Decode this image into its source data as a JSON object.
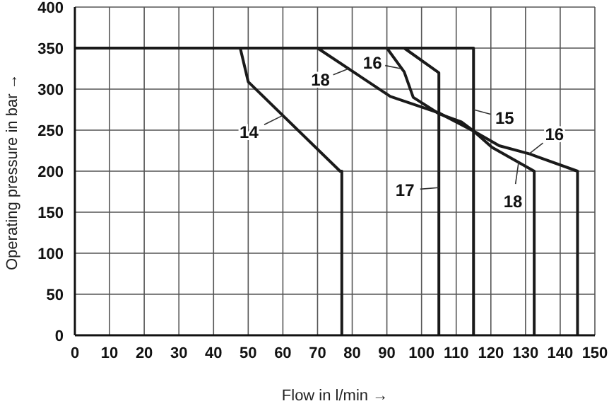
{
  "chart_data": {
    "type": "line",
    "xlabel": "Flow in l/min →",
    "ylabel": "Operating pressure in bar →",
    "xlim": [
      0,
      150
    ],
    "ylim": [
      0,
      400
    ],
    "xticks": [
      0,
      10,
      20,
      30,
      40,
      50,
      60,
      70,
      80,
      90,
      100,
      110,
      120,
      130,
      140,
      150
    ],
    "yticks": [
      0,
      50,
      100,
      150,
      200,
      250,
      300,
      350,
      400
    ],
    "grid": true,
    "marker": "none",
    "line_style": "solid",
    "series": [
      {
        "color": "#1a1a1a",
        "x": [
          0,
          47.7,
          50,
          76.5,
          77,
          77
        ],
        "values": [
          350,
          350,
          309,
          200,
          200,
          0
        ]
      },
      {
        "color": "#1a1a1a",
        "x": [
          0,
          115,
          115
        ],
        "values": [
          350,
          350,
          0
        ]
      },
      {
        "color": "#1a1a1a",
        "x": [
          0,
          90,
          95,
          97.6,
          105,
          111.5,
          115,
          122.4,
          131.2,
          145,
          145
        ],
        "values": [
          350,
          350,
          321,
          290,
          270,
          260,
          249,
          231,
          221,
          200,
          0
        ]
      },
      {
        "color": "#1a1a1a",
        "x": [
          0,
          95,
          105,
          105
        ],
        "values": [
          350,
          350,
          320,
          0
        ]
      },
      {
        "color": "#1a1a1a",
        "x": [
          0,
          70,
          91,
          105,
          115,
          120.3,
          132.5,
          132.5
        ],
        "values": [
          350,
          350,
          291,
          271,
          249,
          229,
          200,
          0
        ]
      }
    ],
    "annotations": [
      {
        "text": "14",
        "x": 60,
        "y": 268
      },
      {
        "text": "18",
        "x": 79,
        "y": 325
      },
      {
        "text": "16",
        "x": 94,
        "y": 325
      },
      {
        "text": "15",
        "x": 115,
        "y": 275
      },
      {
        "text": "16",
        "x": 131,
        "y": 221
      },
      {
        "text": "18",
        "x": 128,
        "y": 211
      },
      {
        "text": "17",
        "x": 105,
        "y": 180
      }
    ]
  }
}
